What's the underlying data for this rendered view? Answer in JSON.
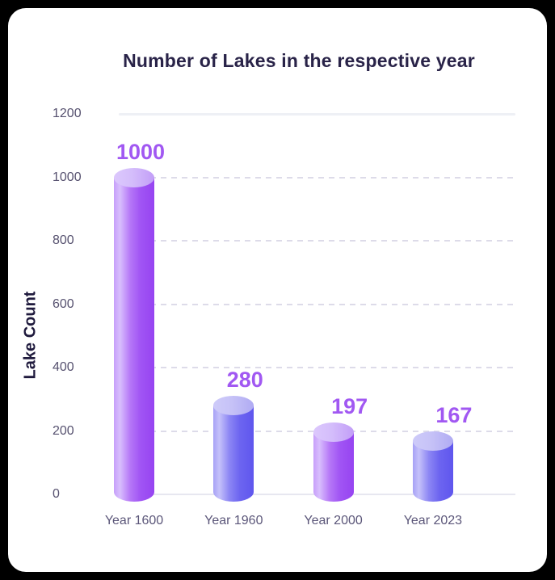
{
  "chart_data": {
    "type": "bar",
    "title": "Number of Lakes in the respective year",
    "xlabel": "",
    "ylabel": "Lake Count",
    "categories": [
      "Year 1600",
      "Year 1960",
      "Year 2000",
      "Year 2023"
    ],
    "values": [
      1000,
      280,
      197,
      167
    ],
    "value_labels": [
      "1000",
      "280",
      "197",
      "167"
    ],
    "yticks": [
      0,
      200,
      400,
      600,
      800,
      1000,
      1200
    ],
    "ytick_labels": [
      "0",
      "200",
      "400",
      "600",
      "800",
      "1000",
      "1200"
    ],
    "ylim": [
      0,
      1200
    ],
    "grid": "horizontal dashed, solid at top (1200) and baseline (0)",
    "legend": "none",
    "bar_style": "3d-cylinder",
    "bar_palette": [
      "violet",
      "indigo",
      "violet",
      "indigo"
    ],
    "colors": {
      "page_bg": "#000000",
      "card_bg": "#ffffff",
      "title": "#292348",
      "y_axis_title": "#1f1a3d",
      "y_tick_label": "#56516f",
      "x_tick_label": "#5b5679",
      "value_label": "#a158f2",
      "grid_dashed": "#dddbe9",
      "grid_solid": "#eef0f5",
      "bar_violet_light": "#d8befd",
      "bar_violet_dark": "#9644f1",
      "bar_violet_top": "#d4bdfb",
      "bar_indigo_light": "#c5c1fa",
      "bar_indigo_dark": "#5f56ee",
      "bar_indigo_top": "#c6c2f7"
    }
  }
}
